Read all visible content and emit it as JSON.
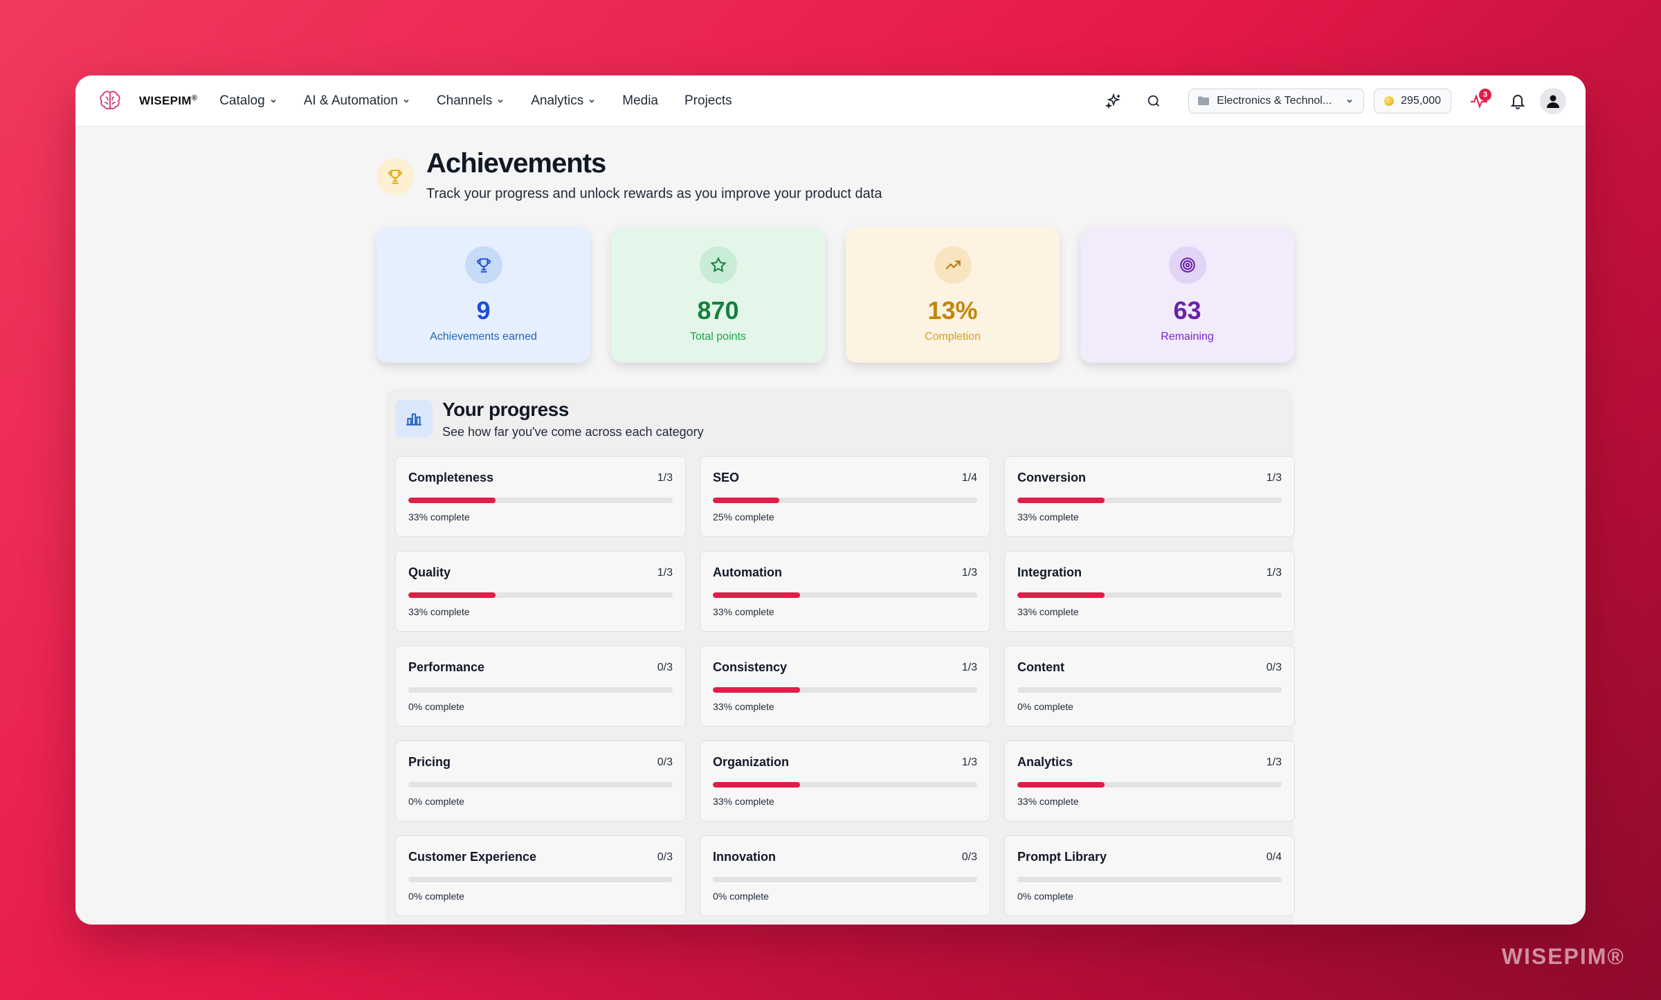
{
  "brand": {
    "name": "WISEPIM",
    "mark": "®"
  },
  "nav": [
    {
      "label": "Catalog",
      "dropdown": true
    },
    {
      "label": "AI & Automation",
      "dropdown": true
    },
    {
      "label": "Channels",
      "dropdown": true
    },
    {
      "label": "Analytics",
      "dropdown": true
    },
    {
      "label": "Media",
      "dropdown": false
    },
    {
      "label": "Projects",
      "dropdown": false
    }
  ],
  "header": {
    "org_selector": "Electronics & Technol...",
    "credits": "295,000",
    "activity_badge": "3"
  },
  "page": {
    "title": "Achievements",
    "subtitle": "Track your progress and unlock rewards as you improve your product data"
  },
  "stats": [
    {
      "value": "9",
      "label": "Achievements earned",
      "icon": "trophy-icon"
    },
    {
      "value": "870",
      "label": "Total points",
      "icon": "star-icon"
    },
    {
      "value": "13%",
      "label": "Completion",
      "icon": "trending-up-icon"
    },
    {
      "value": "63",
      "label": "Remaining",
      "icon": "target-icon"
    }
  ],
  "progress": {
    "title": "Your progress",
    "subtitle": "See how far you've come across each category",
    "categories": [
      {
        "name": "Completeness",
        "fraction": "1/3",
        "percent": 33,
        "label": "33% complete"
      },
      {
        "name": "SEO",
        "fraction": "1/4",
        "percent": 25,
        "label": "25% complete"
      },
      {
        "name": "Conversion",
        "fraction": "1/3",
        "percent": 33,
        "label": "33% complete"
      },
      {
        "name": "Quality",
        "fraction": "1/3",
        "percent": 33,
        "label": "33% complete"
      },
      {
        "name": "Automation",
        "fraction": "1/3",
        "percent": 33,
        "label": "33% complete"
      },
      {
        "name": "Integration",
        "fraction": "1/3",
        "percent": 33,
        "label": "33% complete"
      },
      {
        "name": "Performance",
        "fraction": "0/3",
        "percent": 0,
        "label": "0% complete"
      },
      {
        "name": "Consistency",
        "fraction": "1/3",
        "percent": 33,
        "label": "33% complete"
      },
      {
        "name": "Content",
        "fraction": "0/3",
        "percent": 0,
        "label": "0% complete"
      },
      {
        "name": "Pricing",
        "fraction": "0/3",
        "percent": 0,
        "label": "0% complete"
      },
      {
        "name": "Organization",
        "fraction": "1/3",
        "percent": 33,
        "label": "33% complete"
      },
      {
        "name": "Analytics",
        "fraction": "1/3",
        "percent": 33,
        "label": "33% complete"
      },
      {
        "name": "Customer Experience",
        "fraction": "0/3",
        "percent": 0,
        "label": "0% complete"
      },
      {
        "name": "Innovation",
        "fraction": "0/3",
        "percent": 0,
        "label": "0% complete"
      },
      {
        "name": "Prompt Library",
        "fraction": "0/4",
        "percent": 0,
        "label": "0% complete"
      }
    ]
  },
  "watermark": "WISEPIM®",
  "colors": {
    "accent": "#e11d48",
    "background": "#e5194a"
  }
}
